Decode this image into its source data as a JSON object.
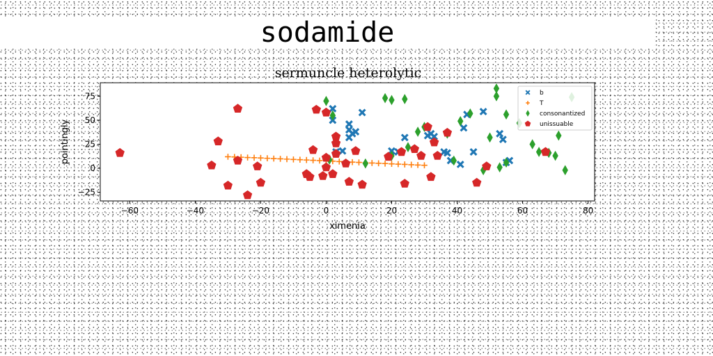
{
  "header": {
    "title": "sodamide"
  },
  "chart_data": {
    "type": "scatter",
    "title": "sermuncle heterolytic",
    "xlabel": "ximenia",
    "ylabel": "pointingly",
    "xlim": [
      -69,
      82
    ],
    "ylim": [
      -34,
      89
    ],
    "xticks": [
      -60,
      -40,
      -20,
      0,
      20,
      40,
      60,
      80
    ],
    "yticks": [
      -25,
      0,
      25,
      50,
      75
    ],
    "grid": false,
    "legend_position": "top-right",
    "series": [
      {
        "name": "b",
        "color": "#1f77b4",
        "marker": "x",
        "points": [
          [
            2,
            62
          ],
          [
            2,
            50
          ],
          [
            3,
            17
          ],
          [
            5,
            18
          ],
          [
            7,
            46
          ],
          [
            7,
            40
          ],
          [
            7,
            32
          ],
          [
            8,
            36
          ],
          [
            9,
            38
          ],
          [
            11,
            58
          ],
          [
            20,
            18
          ],
          [
            22,
            17
          ],
          [
            24,
            32
          ],
          [
            31,
            34
          ],
          [
            32,
            36
          ],
          [
            33,
            33
          ],
          [
            36,
            17
          ],
          [
            37,
            16
          ],
          [
            38,
            8
          ],
          [
            41,
            4
          ],
          [
            42,
            42
          ],
          [
            43,
            56
          ],
          [
            45,
            17
          ],
          [
            48,
            59
          ],
          [
            53,
            36
          ],
          [
            54,
            30
          ],
          [
            55,
            6
          ],
          [
            56,
            8
          ]
        ]
      },
      {
        "name": "T",
        "color": "#ff7f0e",
        "marker": "+",
        "points": [
          [
            -30,
            12.0
          ],
          [
            -28,
            11.8
          ],
          [
            -26,
            11.5
          ],
          [
            -24,
            11.2
          ],
          [
            -22,
            11.0
          ],
          [
            -20,
            10.7
          ],
          [
            -18,
            10.4
          ],
          [
            -16,
            10.1
          ],
          [
            -14,
            9.8
          ],
          [
            -12,
            9.5
          ],
          [
            -10,
            9.2
          ],
          [
            -8,
            8.9
          ],
          [
            -6,
            8.6
          ],
          [
            -4,
            8.3
          ],
          [
            -2,
            8.0
          ],
          [
            0,
            7.7
          ],
          [
            2,
            7.4
          ],
          [
            4,
            7.0
          ],
          [
            6,
            6.7
          ],
          [
            8,
            6.4
          ],
          [
            10,
            6.1
          ],
          [
            12,
            5.8
          ],
          [
            14,
            5.5
          ],
          [
            16,
            5.2
          ],
          [
            18,
            4.9
          ],
          [
            20,
            4.6
          ],
          [
            22,
            4.3
          ],
          [
            24,
            4.0
          ],
          [
            26,
            3.7
          ],
          [
            28,
            3.4
          ],
          [
            30,
            3.1
          ]
        ]
      },
      {
        "name": "consonantized",
        "color": "#2ca02c",
        "marker": "diamond",
        "points": [
          [
            0,
            70
          ],
          [
            1,
            9
          ],
          [
            2,
            55
          ],
          [
            12,
            5
          ],
          [
            18,
            73
          ],
          [
            20,
            71
          ],
          [
            20,
            13
          ],
          [
            24,
            72
          ],
          [
            25,
            22
          ],
          [
            28,
            38
          ],
          [
            30,
            43
          ],
          [
            37,
            36
          ],
          [
            39,
            8
          ],
          [
            41,
            49
          ],
          [
            44,
            57
          ],
          [
            48,
            -2
          ],
          [
            50,
            32
          ],
          [
            52,
            83
          ],
          [
            52,
            75
          ],
          [
            53,
            1
          ],
          [
            55,
            56
          ],
          [
            55,
            6
          ],
          [
            59,
            47
          ],
          [
            63,
            25
          ],
          [
            65,
            17
          ],
          [
            68,
            16
          ],
          [
            70,
            13
          ],
          [
            71,
            34
          ],
          [
            73,
            -2
          ],
          [
            75,
            74
          ]
        ]
      },
      {
        "name": "unissuable",
        "color": "#d62728",
        "marker": "pentagon",
        "points": [
          [
            -63,
            16
          ],
          [
            -35,
            3
          ],
          [
            -33,
            28
          ],
          [
            -30,
            -18
          ],
          [
            -27,
            62
          ],
          [
            -27,
            8
          ],
          [
            -24,
            -28
          ],
          [
            -21,
            2
          ],
          [
            -20,
            -15
          ],
          [
            -6,
            -6
          ],
          [
            -5,
            -9
          ],
          [
            -4,
            19
          ],
          [
            -3,
            61
          ],
          [
            -1,
            -8
          ],
          [
            0,
            58
          ],
          [
            0,
            11
          ],
          [
            0,
            1
          ],
          [
            2,
            -6
          ],
          [
            3,
            33
          ],
          [
            3,
            26
          ],
          [
            3,
            15
          ],
          [
            6,
            5
          ],
          [
            7,
            -14
          ],
          [
            9,
            18
          ],
          [
            11,
            -17
          ],
          [
            19,
            12
          ],
          [
            23,
            17
          ],
          [
            24,
            -16
          ],
          [
            27,
            20
          ],
          [
            29,
            13
          ],
          [
            31,
            43
          ],
          [
            32,
            -9
          ],
          [
            33,
            27
          ],
          [
            34,
            13
          ],
          [
            37,
            37
          ],
          [
            46,
            -15
          ],
          [
            49,
            2
          ],
          [
            67,
            17
          ]
        ]
      }
    ]
  }
}
